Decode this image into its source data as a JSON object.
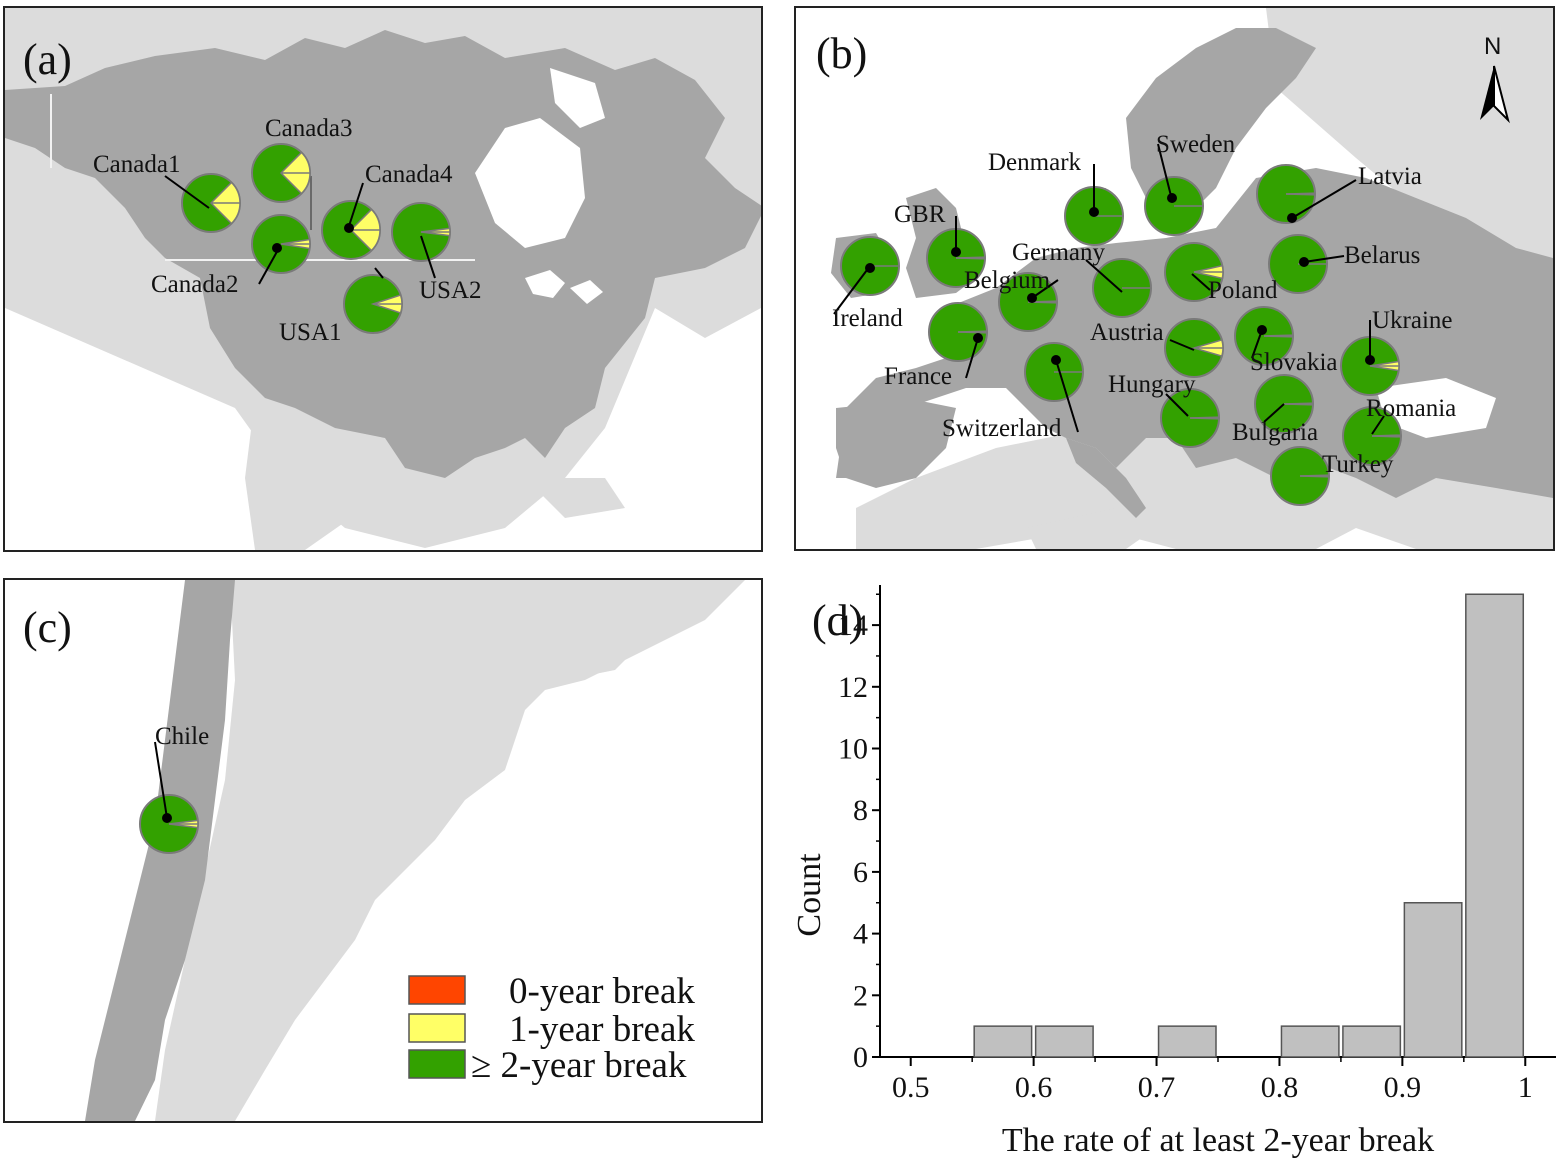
{
  "colors": {
    "land_dark": "#a6a6a6",
    "land_light": "#dcdcdc",
    "ocean": "#ffffff",
    "zero_year": "#ff4500",
    "one_year": "#ffff66",
    "two_plus_year": "#33a100",
    "pie_edge": "#7a7a7a",
    "bar_fill": "#c0c0c0",
    "bar_edge": "#555555"
  },
  "panels": {
    "a": {
      "label": "(a)"
    },
    "b": {
      "label": "(b)",
      "north_arrow": "N"
    },
    "c": {
      "label": "(c)"
    },
    "d": {
      "label": "(d)"
    }
  },
  "sites": {
    "a": [
      {
        "name": "Canada1",
        "one_year_share": 0.25
      },
      {
        "name": "Canada3",
        "one_year_share": 0.25
      },
      {
        "name": "Canada4",
        "one_year_share": 0.25
      },
      {
        "name": "Canada2",
        "one_year_share": 0.05
      },
      {
        "name": "USA2",
        "one_year_share": 0.04
      },
      {
        "name": "USA1",
        "one_year_share": 0.1
      }
    ],
    "b": [
      {
        "name": "Denmark",
        "one_year_share": 0
      },
      {
        "name": "Sweden",
        "one_year_share": 0
      },
      {
        "name": "Latvia",
        "one_year_share": 0.01
      },
      {
        "name": "GBR",
        "one_year_share": 0.01
      },
      {
        "name": "Germany",
        "one_year_share": 0
      },
      {
        "name": "Belarus",
        "one_year_share": 0
      },
      {
        "name": "Ireland",
        "one_year_share": 0
      },
      {
        "name": "Belgium",
        "one_year_share": 0.01
      },
      {
        "name": "Poland",
        "one_year_share": 0.07
      },
      {
        "name": "Austria",
        "one_year_share": 0.09
      },
      {
        "name": "Slovakia",
        "one_year_share": 0.01
      },
      {
        "name": "Ukraine",
        "one_year_share": 0.05
      },
      {
        "name": "France",
        "one_year_share": 0.01
      },
      {
        "name": "Switzerland",
        "one_year_share": 0
      },
      {
        "name": "Hungary",
        "one_year_share": 0.01
      },
      {
        "name": "Bulgaria",
        "one_year_share": 0.01
      },
      {
        "name": "Romania",
        "one_year_share": 0.01
      },
      {
        "name": "Turkey",
        "one_year_share": 0.01
      }
    ],
    "c": [
      {
        "name": "Chile",
        "one_year_share": 0.04
      }
    ]
  },
  "legend": [
    {
      "label": "0-year break",
      "color_key": "zero_year"
    },
    {
      "label": "1-year break",
      "color_key": "one_year"
    },
    {
      "label": "≥ 2-year break",
      "color_key": "two_plus_year"
    }
  ],
  "chart_data": {
    "type": "bar",
    "xlabel": "The rate of at least 2-year break",
    "ylabel": "Count",
    "xlim": [
      0.475,
      1.025
    ],
    "ylim": [
      0,
      15.3
    ],
    "xticks": [
      "0.5",
      "0.6",
      "0.7",
      "0.8",
      "0.9",
      "1"
    ],
    "xtick_values": [
      0.5,
      0.6,
      0.7,
      0.8,
      0.9,
      1.0
    ],
    "yticks": [
      "0",
      "2",
      "4",
      "6",
      "8",
      "10",
      "12",
      "14"
    ],
    "ytick_values": [
      0,
      2,
      4,
      6,
      8,
      10,
      12,
      14
    ],
    "bins": [
      {
        "x0": 0.55,
        "x1": 0.6,
        "count": 1
      },
      {
        "x0": 0.6,
        "x1": 0.65,
        "count": 1
      },
      {
        "x0": 0.7,
        "x1": 0.75,
        "count": 1
      },
      {
        "x0": 0.8,
        "x1": 0.85,
        "count": 1
      },
      {
        "x0": 0.85,
        "x1": 0.9,
        "count": 1
      },
      {
        "x0": 0.9,
        "x1": 0.95,
        "count": 5
      },
      {
        "x0": 0.95,
        "x1": 1.0,
        "count": 15
      }
    ],
    "grid": false
  }
}
